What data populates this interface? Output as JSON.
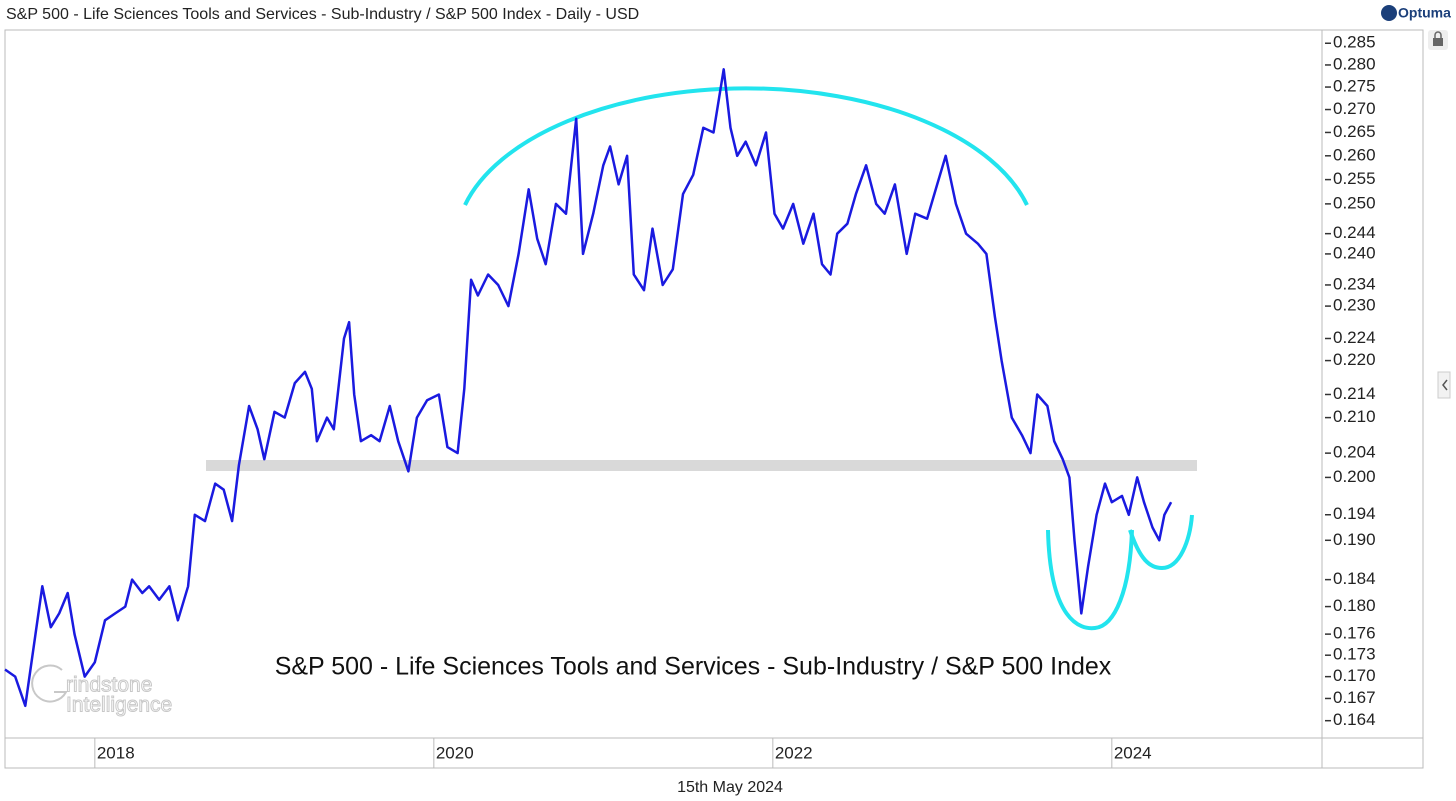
{
  "chart_data": {
    "type": "line",
    "title": "S&P 500 - Life Sciences Tools and Services - Sub-Industry / S&P 500 Index - Daily - USD",
    "brand": "Optuma",
    "annotation": "S&P 500 - Life Sciences Tools and Services - Sub-Industry / S&P 500 Index",
    "watermark": [
      "rindstone",
      "Intelligence"
    ],
    "footer": "15th May 2024",
    "yscale": "log",
    "xlim": [
      2017.47,
      2025.24
    ],
    "xticks": [
      2018,
      2020,
      2022,
      2024
    ],
    "ylim": [
      0.1617,
      0.2881
    ],
    "yticks": [
      0.285,
      {
        "value": 0.28,
        "label": "0.280"
      },
      0.275,
      {
        "value": 0.27,
        "label": "0.270"
      },
      0.265,
      {
        "value": 0.26,
        "label": "0.260"
      },
      0.255,
      {
        "value": 0.25,
        "label": "0.250"
      },
      0.244,
      {
        "value": 0.24,
        "label": "0.240"
      },
      0.234,
      {
        "value": 0.23,
        "label": "0.230"
      },
      0.224,
      {
        "value": 0.22,
        "label": "0.220"
      },
      0.214,
      {
        "value": 0.21,
        "label": "0.210"
      },
      0.204,
      {
        "value": 0.2,
        "label": "0.200"
      },
      0.194,
      {
        "value": 0.19,
        "label": "0.190"
      },
      0.184,
      {
        "value": 0.18,
        "label": "0.180"
      },
      0.176,
      0.173,
      {
        "value": 0.17,
        "label": "0.170"
      },
      0.167,
      0.164
    ],
    "series": [
      {
        "color": "#1a1ae0",
        "x": [
          2017.47,
          2017.53,
          2017.59,
          2017.65,
          2017.69,
          2017.74,
          2017.79,
          2017.84,
          2017.88,
          2017.94,
          2018.0,
          2018.06,
          2018.12,
          2018.18,
          2018.22,
          2018.28,
          2018.32,
          2018.38,
          2018.44,
          2018.49,
          2018.55,
          2018.59,
          2018.65,
          2018.71,
          2018.76,
          2018.81,
          2018.85,
          2018.91,
          2018.96,
          2019.0,
          2019.06,
          2019.12,
          2019.18,
          2019.24,
          2019.28,
          2019.31,
          2019.37,
          2019.41,
          2019.47,
          2019.5,
          2019.53,
          2019.57,
          2019.63,
          2019.68,
          2019.74,
          2019.79,
          2019.85,
          2019.9,
          2019.96,
          2020.03,
          2020.08,
          2020.14,
          2020.18,
          2020.22,
          2020.26,
          2020.32,
          2020.38,
          2020.44,
          2020.5,
          2020.56,
          2020.61,
          2020.66,
          2020.72,
          2020.78,
          2020.84,
          2020.88,
          2020.94,
          2021.0,
          2021.04,
          2021.09,
          2021.14,
          2021.18,
          2021.24,
          2021.29,
          2021.35,
          2021.41,
          2021.47,
          2021.53,
          2021.59,
          2021.65,
          2021.71,
          2021.75,
          2021.79,
          2021.84,
          2021.9,
          2021.96,
          2022.01,
          2022.06,
          2022.12,
          2022.18,
          2022.24,
          2022.29,
          2022.34,
          2022.38,
          2022.44,
          2022.49,
          2022.55,
          2022.61,
          2022.66,
          2022.72,
          2022.79,
          2022.84,
          2022.91,
          2022.97,
          2023.02,
          2023.08,
          2023.14,
          2023.21,
          2023.26,
          2023.31,
          2023.35,
          2023.41,
          2023.47,
          2023.52,
          2023.56,
          2023.62,
          2023.66,
          2023.71,
          2023.75,
          2023.78,
          2023.82,
          2023.86,
          2023.91,
          2023.96,
          2024.0,
          2024.06,
          2024.1,
          2024.15,
          2024.19,
          2024.24,
          2024.28,
          2024.31,
          2024.35
        ],
        "values": [
          0.171,
          0.17,
          0.166,
          0.176,
          0.183,
          0.177,
          0.179,
          0.182,
          0.176,
          0.17,
          0.172,
          0.178,
          0.179,
          0.18,
          0.184,
          0.182,
          0.183,
          0.181,
          0.183,
          0.178,
          0.183,
          0.194,
          0.193,
          0.199,
          0.198,
          0.193,
          0.202,
          0.212,
          0.208,
          0.203,
          0.211,
          0.21,
          0.216,
          0.218,
          0.215,
          0.206,
          0.21,
          0.208,
          0.224,
          0.227,
          0.214,
          0.206,
          0.207,
          0.206,
          0.212,
          0.206,
          0.201,
          0.21,
          0.213,
          0.214,
          0.205,
          0.204,
          0.215,
          0.235,
          0.232,
          0.236,
          0.234,
          0.23,
          0.24,
          0.253,
          0.243,
          0.238,
          0.25,
          0.248,
          0.268,
          0.24,
          0.248,
          0.258,
          0.262,
          0.254,
          0.26,
          0.236,
          0.233,
          0.245,
          0.234,
          0.237,
          0.252,
          0.256,
          0.266,
          0.265,
          0.279,
          0.266,
          0.26,
          0.263,
          0.258,
          0.265,
          0.248,
          0.245,
          0.25,
          0.242,
          0.248,
          0.238,
          0.236,
          0.244,
          0.246,
          0.252,
          0.258,
          0.25,
          0.248,
          0.254,
          0.24,
          0.248,
          0.247,
          0.254,
          0.26,
          0.25,
          0.244,
          0.242,
          0.24,
          0.228,
          0.22,
          0.21,
          0.207,
          0.204,
          0.214,
          0.212,
          0.206,
          0.203,
          0.2,
          0.19,
          0.179,
          0.186,
          0.194,
          0.199,
          0.196,
          0.197,
          0.194,
          0.2,
          0.196,
          0.192,
          0.19,
          0.194,
          0.196
        ]
      }
    ]
  }
}
